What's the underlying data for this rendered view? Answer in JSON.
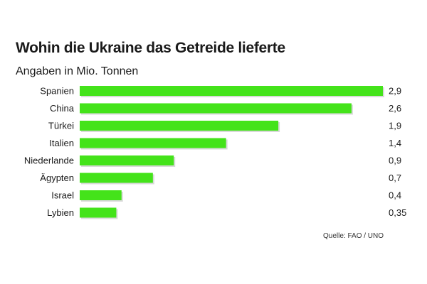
{
  "chart_data": {
    "type": "bar",
    "orientation": "horizontal",
    "title": "Wohin die Ukraine das Getreide lieferte",
    "subtitle": "Angaben in Mio. Tonnen",
    "categories": [
      "Spanien",
      "China",
      "Türkei",
      "Italien",
      "Niederlande",
      "Ägypten",
      "Israel",
      "Lybien"
    ],
    "values": [
      2.9,
      2.6,
      1.9,
      1.4,
      0.9,
      0.7,
      0.4,
      0.35
    ],
    "value_labels": [
      "2,9",
      "2,6",
      "1,9",
      "1,4",
      "0,9",
      "0,7",
      "0,4",
      "0,35"
    ],
    "xlim": [
      0,
      2.9
    ],
    "bar_color": "#44e31a",
    "shadow_color": "#d9d9d9",
    "grid": false,
    "source": "Quelle: FAO / UNO"
  }
}
